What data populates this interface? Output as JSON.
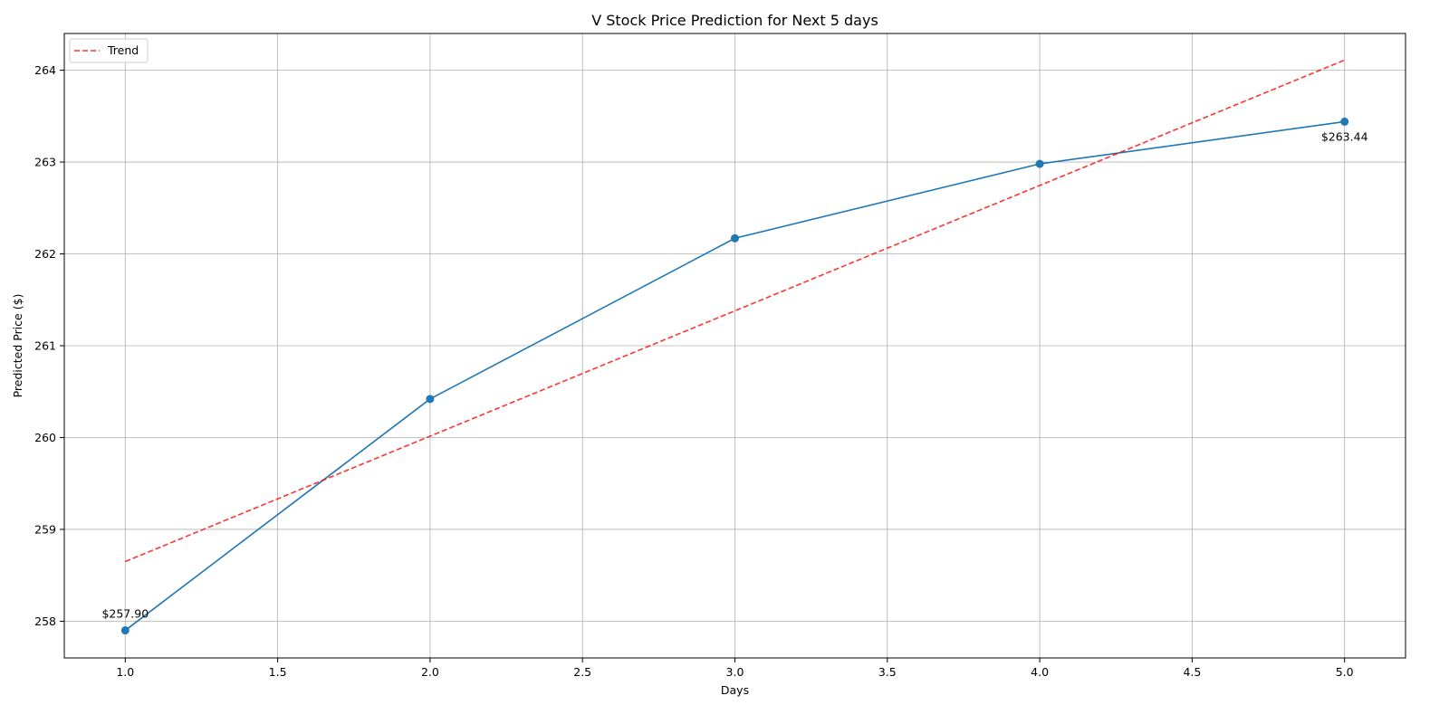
{
  "chart_data": {
    "type": "line",
    "title": "V Stock Price Prediction for Next 5 days",
    "xlabel": "Days",
    "ylabel": "Predicted Price ($)",
    "xlim": [
      0.8,
      5.2
    ],
    "ylim": [
      257.6,
      264.4
    ],
    "x_ticks": [
      1.0,
      1.5,
      2.0,
      2.5,
      3.0,
      3.5,
      4.0,
      4.5,
      5.0
    ],
    "x_tick_labels": [
      "1.0",
      "1.5",
      "2.0",
      "2.5",
      "3.0",
      "3.5",
      "4.0",
      "4.5",
      "5.0"
    ],
    "y_ticks": [
      258,
      259,
      260,
      261,
      262,
      263,
      264
    ],
    "y_tick_labels": [
      "258",
      "259",
      "260",
      "261",
      "262",
      "263",
      "264"
    ],
    "grid": true,
    "legend_position": "top-left",
    "series": [
      {
        "color": "#1f77b4",
        "style": "solid",
        "markers": true,
        "x": [
          1,
          2,
          3,
          4,
          5
        ],
        "values": [
          257.9,
          260.42,
          262.17,
          262.98,
          263.44
        ]
      },
      {
        "name": "Trend",
        "color": "#ff0000",
        "style": "dashed",
        "markers": false,
        "x": [
          1,
          5
        ],
        "values": [
          258.65,
          264.11
        ]
      }
    ],
    "annotations": [
      {
        "text": "$257.90",
        "x": 1,
        "y": 257.9,
        "position": "above"
      },
      {
        "text": "$263.44",
        "x": 5,
        "y": 263.44,
        "position": "below"
      }
    ]
  }
}
